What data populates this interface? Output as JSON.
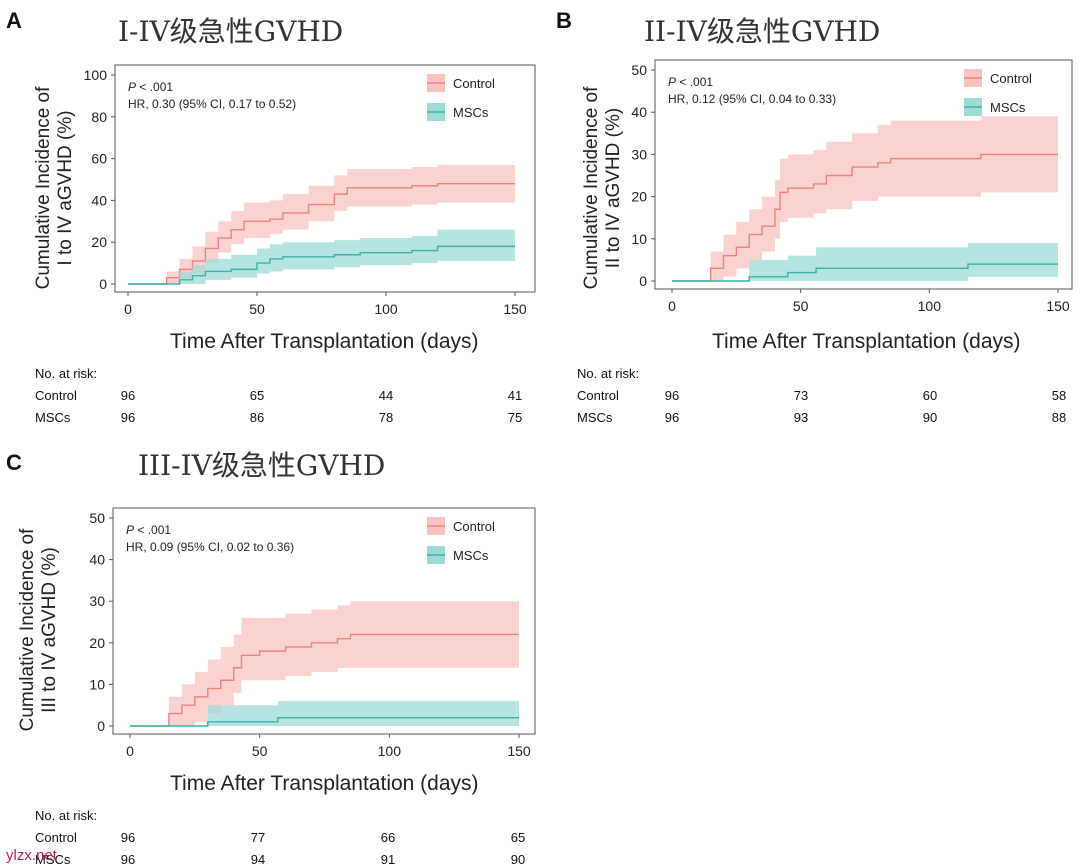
{
  "colors": {
    "control_line": "#e9837d",
    "control_band": "#f8c3c0",
    "mscs_line": "#3ab0a6",
    "mscs_band": "#9edbd5"
  },
  "watermark": "ylzx.net",
  "chart_data": [
    {
      "type": "line",
      "panel_label": "A",
      "title": "I-IV级急性GVHD",
      "xlabel": "Time After Transplantation (days)",
      "ylabel_line1": "Cumulative Incidence of",
      "ylabel_line2": "I to IV aGVHD (%)",
      "xlim": [
        0,
        150
      ],
      "ylim": [
        0,
        100
      ],
      "xticks": [
        "0",
        "50",
        "100",
        "150"
      ],
      "yticks": [
        "0",
        "20",
        "40",
        "60",
        "80",
        "100"
      ],
      "annotation_p_label": "P",
      "annotation_p": " < .001",
      "annotation_hr": "HR, 0.30 (95% CI, 0.17 to 0.52)",
      "legend": [
        "Control",
        "MSCs"
      ],
      "series": [
        {
          "name": "Control",
          "x": [
            0,
            10,
            15,
            20,
            25,
            30,
            35,
            40,
            45,
            50,
            55,
            60,
            70,
            80,
            85,
            90,
            100,
            110,
            120,
            150
          ],
          "y": [
            0,
            0,
            3,
            7,
            11,
            17,
            22,
            26,
            30,
            30,
            31,
            34,
            38,
            43,
            46,
            46,
            46,
            47,
            48,
            48
          ],
          "lo": [
            0,
            0,
            0,
            2,
            5,
            10,
            15,
            19,
            22,
            22,
            24,
            26,
            30,
            35,
            37,
            37,
            37,
            38,
            39,
            39
          ],
          "hi": [
            0,
            0,
            6,
            12,
            18,
            25,
            30,
            35,
            39,
            39,
            40,
            43,
            47,
            52,
            55,
            55,
            55,
            56,
            57,
            57
          ]
        },
        {
          "name": "MSCs",
          "x": [
            0,
            15,
            20,
            25,
            30,
            40,
            50,
            55,
            60,
            70,
            80,
            90,
            100,
            110,
            115,
            120,
            150
          ],
          "y": [
            0,
            0,
            2,
            4,
            6,
            7,
            10,
            12,
            13,
            13,
            14,
            15,
            15,
            16,
            16,
            18,
            18
          ],
          "lo": [
            0,
            0,
            0,
            0,
            2,
            3,
            5,
            6,
            7,
            7,
            8,
            9,
            9,
            10,
            10,
            11,
            11
          ],
          "hi": [
            0,
            0,
            6,
            9,
            12,
            14,
            17,
            19,
            20,
            20,
            21,
            22,
            22,
            23,
            23,
            26,
            26
          ]
        }
      ],
      "risk_title": "No. at risk:",
      "risk_rows": [
        {
          "name": "Control",
          "values": [
            "96",
            "65",
            "44",
            "41"
          ]
        },
        {
          "name": "MSCs",
          "values": [
            "96",
            "86",
            "78",
            "75"
          ]
        }
      ]
    },
    {
      "type": "line",
      "panel_label": "B",
      "title": "II-IV级急性GVHD",
      "xlabel": "Time After Transplantation (days)",
      "ylabel_line1": "Cumulative Incidence of",
      "ylabel_line2": "II to IV aGVHD (%)",
      "xlim": [
        0,
        150
      ],
      "ylim": [
        0,
        50
      ],
      "xticks": [
        "0",
        "50",
        "100",
        "150"
      ],
      "yticks": [
        "0",
        "10",
        "20",
        "30",
        "40",
        "50"
      ],
      "annotation_p_label": "P",
      "annotation_p": " < .001",
      "annotation_hr": "HR, 0.12 (95% CI, 0.04 to 0.33)",
      "legend": [
        "Control",
        "MSCs"
      ],
      "series": [
        {
          "name": "Control",
          "x": [
            0,
            10,
            15,
            20,
            25,
            30,
            35,
            40,
            42,
            45,
            55,
            60,
            70,
            80,
            85,
            100,
            110,
            120,
            150
          ],
          "y": [
            0,
            0,
            3,
            6,
            8,
            11,
            13,
            17,
            21,
            22,
            23,
            25,
            27,
            28,
            29,
            29,
            29,
            30,
            30
          ],
          "lo": [
            0,
            0,
            0,
            1,
            3,
            5,
            7,
            10,
            14,
            15,
            16,
            17,
            19,
            20,
            20,
            20,
            20,
            21,
            21
          ],
          "hi": [
            0,
            0,
            7,
            11,
            14,
            17,
            20,
            24,
            29,
            30,
            31,
            33,
            35,
            37,
            38,
            38,
            38,
            39,
            39
          ]
        },
        {
          "name": "MSCs",
          "x": [
            0,
            28,
            30,
            45,
            56,
            60,
            80,
            100,
            115,
            120,
            150
          ],
          "y": [
            0,
            0,
            1,
            2,
            3,
            3,
            3,
            3,
            4,
            4,
            4
          ],
          "lo": [
            0,
            0,
            0,
            0,
            0,
            0,
            0,
            0,
            1,
            1,
            1
          ],
          "hi": [
            0,
            0,
            5,
            6,
            8,
            8,
            8,
            8,
            9,
            9,
            9
          ]
        }
      ],
      "risk_title": "No. at risk:",
      "risk_rows": [
        {
          "name": "Control",
          "values": [
            "96",
            "73",
            "60",
            "58"
          ]
        },
        {
          "name": "MSCs",
          "values": [
            "96",
            "93",
            "90",
            "88"
          ]
        }
      ]
    },
    {
      "type": "line",
      "panel_label": "C",
      "title": "III-IV级急性GVHD",
      "xlabel": "Time After Transplantation (days)",
      "ylabel_line1": "Cumulative Incidence of",
      "ylabel_line2": "III to IV aGVHD (%)",
      "xlim": [
        0,
        150
      ],
      "ylim": [
        0,
        50
      ],
      "xticks": [
        "0",
        "50",
        "100",
        "150"
      ],
      "yticks": [
        "0",
        "10",
        "20",
        "30",
        "40",
        "50"
      ],
      "annotation_p_label": "P",
      "annotation_p": " < .001",
      "annotation_hr": "HR, 0.09 (95% CI, 0.02 to 0.36)",
      "legend": [
        "Control",
        "MSCs"
      ],
      "series": [
        {
          "name": "Control",
          "x": [
            0,
            10,
            15,
            20,
            25,
            30,
            35,
            40,
            43,
            50,
            60,
            70,
            80,
            85,
            100,
            150
          ],
          "y": [
            0,
            0,
            3,
            5,
            7,
            9,
            11,
            14,
            17,
            18,
            19,
            20,
            21,
            22,
            22,
            22
          ],
          "lo": [
            0,
            0,
            0,
            0,
            1,
            3,
            5,
            8,
            11,
            11,
            12,
            13,
            14,
            14,
            14,
            14
          ],
          "hi": [
            0,
            0,
            7,
            10,
            13,
            16,
            19,
            22,
            26,
            26,
            27,
            28,
            29,
            30,
            30,
            30
          ]
        },
        {
          "name": "MSCs",
          "x": [
            0,
            29,
            30,
            50,
            57,
            60,
            100,
            150
          ],
          "y": [
            0,
            0,
            1,
            1,
            2,
            2,
            2,
            2
          ],
          "lo": [
            0,
            0,
            0,
            0,
            0,
            0,
            0,
            0
          ],
          "hi": [
            0,
            0,
            5,
            5,
            6,
            6,
            6,
            6
          ]
        }
      ],
      "risk_title": "No. at risk:",
      "risk_rows": [
        {
          "name": "Control",
          "values": [
            "96",
            "77",
            "66",
            "65"
          ]
        },
        {
          "name": "MSCs",
          "values": [
            "96",
            "94",
            "91",
            "90"
          ]
        }
      ]
    }
  ]
}
